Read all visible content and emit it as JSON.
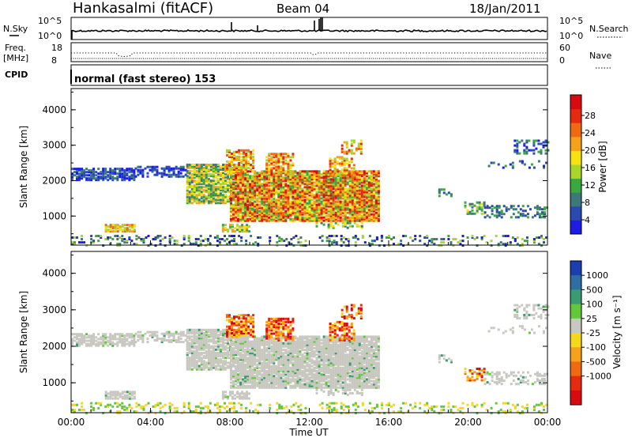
{
  "header": {
    "title": "Hankasalmi (fitACF)",
    "beam": "Beam 04",
    "date": "18/Jan/2011"
  },
  "top_panels": {
    "nsky_label": "N.Sky",
    "nsky_ticks": [
      "10^5",
      "10^0"
    ],
    "nsearch_label": "N.Search",
    "nsearch_ticks": [
      "10^5",
      "10^0"
    ],
    "freq_label_1": "Freq.",
    "freq_label_2": "[MHz]",
    "freq_ticks": [
      "18",
      "8"
    ],
    "nave_label": "Nave",
    "nave_ticks": [
      "60",
      "0"
    ],
    "cpid_label": "CPID",
    "cpid_text": "normal (fast stereo) 153"
  },
  "chart_data": [
    {
      "type": "heatmap",
      "name": "power",
      "ylabel": "Slant Range [km]",
      "yticks": [
        "4000",
        "3000",
        "2000",
        "1000"
      ],
      "ylim": [
        180,
        4600
      ],
      "colorbar_label": "Power [dB]",
      "colorbar_ticks": [
        "28",
        "24",
        "20",
        "16",
        "12",
        "8",
        "4"
      ],
      "colors": [
        "#1c1ce6",
        "#2a4ab0",
        "#3c7a7a",
        "#3aa840",
        "#a8d62a",
        "#f7e20f",
        "#f5a21a",
        "#f06a12",
        "#e62a10",
        "#d80a10"
      ]
    },
    {
      "type": "heatmap",
      "name": "velocity",
      "ylabel": "Slant Range [km]",
      "yticks": [
        "4000",
        "3000",
        "2000",
        "1000"
      ],
      "ylim": [
        180,
        4600
      ],
      "xlabel": "Time UT",
      "xticks": [
        "00:00",
        "04:00",
        "08:00",
        "12:00",
        "16:00",
        "20:00",
        "00:00"
      ],
      "colorbar_label": "Velocity [m s⁻¹]",
      "colorbar_ticks": [
        "1000",
        "500",
        "100",
        "25",
        "-25",
        "-100",
        "-500",
        "-1000"
      ],
      "colors": [
        "#1c3fb0",
        "#2e6ea2",
        "#3a9a72",
        "#62c83a",
        "#c8c8c0",
        "#f5d81a",
        "#f5a21a",
        "#f06a12",
        "#e62a10",
        "#d80a10"
      ]
    }
  ]
}
